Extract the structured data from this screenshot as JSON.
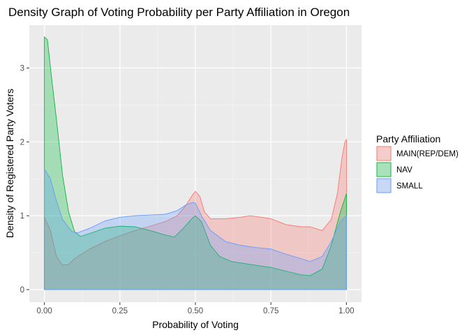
{
  "chart_data": {
    "type": "area",
    "title": "Density Graph of Voting Probability per Party Affiliation in Oregon",
    "xlabel": "Probability of Voting",
    "ylabel": "Density of Registered Party Voters",
    "xlim": [
      -0.05,
      1.05
    ],
    "ylim": [
      -0.17,
      3.58
    ],
    "x_ticks": [
      0,
      0.25,
      0.5,
      0.75,
      1
    ],
    "x_tick_labels": [
      "0.00",
      "0.25",
      "0.50",
      "0.75",
      "1.00"
    ],
    "y_ticks": [
      0,
      1,
      2,
      3
    ],
    "y_tick_labels": [
      "0",
      "1",
      "2",
      "3"
    ],
    "grid": true,
    "legend": {
      "title": "Party Affiliation",
      "placement": "right"
    },
    "series": [
      {
        "name": "MAIN(REP/DEM)",
        "fill": "#F8766D",
        "stroke": "#F8766D",
        "points": [
          [
            0.0,
            0.98
          ],
          [
            0.02,
            0.8
          ],
          [
            0.04,
            0.45
          ],
          [
            0.06,
            0.33
          ],
          [
            0.08,
            0.34
          ],
          [
            0.1,
            0.42
          ],
          [
            0.15,
            0.55
          ],
          [
            0.2,
            0.65
          ],
          [
            0.25,
            0.73
          ],
          [
            0.3,
            0.8
          ],
          [
            0.35,
            0.86
          ],
          [
            0.4,
            0.92
          ],
          [
            0.44,
            1.0
          ],
          [
            0.47,
            1.15
          ],
          [
            0.49,
            1.28
          ],
          [
            0.5,
            1.33
          ],
          [
            0.515,
            1.26
          ],
          [
            0.53,
            1.05
          ],
          [
            0.55,
            0.96
          ],
          [
            0.6,
            0.96
          ],
          [
            0.65,
            0.98
          ],
          [
            0.68,
            1.0
          ],
          [
            0.72,
            0.98
          ],
          [
            0.75,
            0.96
          ],
          [
            0.8,
            0.88
          ],
          [
            0.85,
            0.85
          ],
          [
            0.88,
            0.85
          ],
          [
            0.92,
            0.8
          ],
          [
            0.95,
            0.95
          ],
          [
            0.97,
            1.3
          ],
          [
            0.985,
            1.78
          ],
          [
            0.995,
            2.0
          ],
          [
            1.0,
            2.03
          ]
        ]
      },
      {
        "name": "NAV",
        "fill": "#00BA38",
        "stroke": "#00BA38",
        "points": [
          [
            0.0,
            3.42
          ],
          [
            0.01,
            3.38
          ],
          [
            0.02,
            3.0
          ],
          [
            0.04,
            2.3
          ],
          [
            0.06,
            1.55
          ],
          [
            0.08,
            1.05
          ],
          [
            0.1,
            0.78
          ],
          [
            0.12,
            0.72
          ],
          [
            0.15,
            0.76
          ],
          [
            0.2,
            0.83
          ],
          [
            0.25,
            0.86
          ],
          [
            0.3,
            0.85
          ],
          [
            0.35,
            0.8
          ],
          [
            0.4,
            0.74
          ],
          [
            0.43,
            0.71
          ],
          [
            0.46,
            0.83
          ],
          [
            0.49,
            0.97
          ],
          [
            0.5,
            1.0
          ],
          [
            0.52,
            0.92
          ],
          [
            0.55,
            0.6
          ],
          [
            0.58,
            0.45
          ],
          [
            0.62,
            0.38
          ],
          [
            0.7,
            0.33
          ],
          [
            0.75,
            0.3
          ],
          [
            0.8,
            0.25
          ],
          [
            0.85,
            0.2
          ],
          [
            0.88,
            0.19
          ],
          [
            0.92,
            0.28
          ],
          [
            0.95,
            0.6
          ],
          [
            0.98,
            1.05
          ],
          [
            1.0,
            1.3
          ]
        ]
      },
      {
        "name": "SMALL",
        "fill": "#619CFF",
        "stroke": "#619CFF",
        "points": [
          [
            0.0,
            1.63
          ],
          [
            0.02,
            1.5
          ],
          [
            0.04,
            1.2
          ],
          [
            0.06,
            0.95
          ],
          [
            0.09,
            0.79
          ],
          [
            0.11,
            0.77
          ],
          [
            0.15,
            0.83
          ],
          [
            0.2,
            0.93
          ],
          [
            0.25,
            0.98
          ],
          [
            0.3,
            1.0
          ],
          [
            0.35,
            1.01
          ],
          [
            0.4,
            1.02
          ],
          [
            0.44,
            1.07
          ],
          [
            0.47,
            1.15
          ],
          [
            0.49,
            1.18
          ],
          [
            0.5,
            1.17
          ],
          [
            0.52,
            1.0
          ],
          [
            0.55,
            0.8
          ],
          [
            0.6,
            0.65
          ],
          [
            0.65,
            0.6
          ],
          [
            0.7,
            0.57
          ],
          [
            0.75,
            0.55
          ],
          [
            0.8,
            0.48
          ],
          [
            0.85,
            0.42
          ],
          [
            0.88,
            0.38
          ],
          [
            0.92,
            0.45
          ],
          [
            0.95,
            0.65
          ],
          [
            0.98,
            0.92
          ],
          [
            1.0,
            1.0
          ]
        ]
      }
    ]
  }
}
